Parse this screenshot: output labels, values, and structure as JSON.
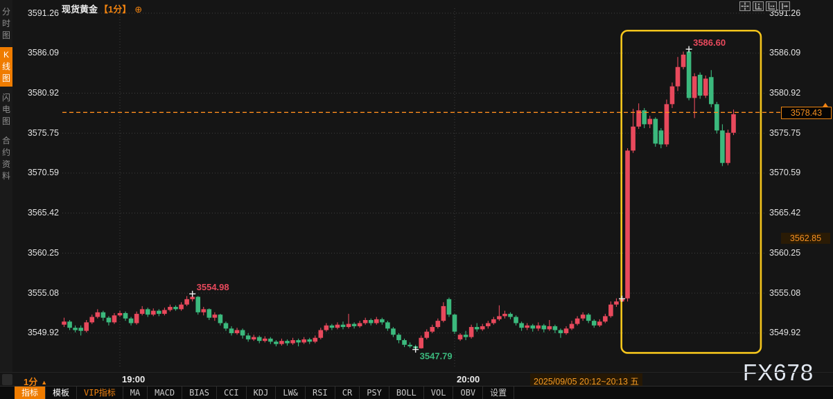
{
  "app": {
    "watermark": "FX678"
  },
  "sidebar": {
    "items": [
      {
        "label": "分时图",
        "active": false
      },
      {
        "label": "K线图",
        "active": true
      },
      {
        "label": "闪电图",
        "active": false
      },
      {
        "label": "合约资料",
        "active": false
      }
    ]
  },
  "header": {
    "symbol": "现货黄金",
    "interval_tag": "【1分】",
    "link_icon": "⊕"
  },
  "top_toolbar": {
    "icons": [
      "crosshair-tool",
      "y-axis-scale",
      "x-axis-scale",
      "shift-right"
    ]
  },
  "y_axis_labels": [
    "3591.26",
    "3586.09",
    "3580.92",
    "3575.75",
    "3570.59",
    "3565.42",
    "3560.25",
    "3555.08",
    "3549.92"
  ],
  "price_labels": {
    "current": "3578.43",
    "reference": "3562.85"
  },
  "footer": {
    "interval": "1分",
    "interval_arrow": "▲",
    "date_range": "2025/09/05 20:12~20:13 五",
    "tabs": [
      {
        "label": "指标",
        "style": "active"
      },
      {
        "label": "模板",
        "style": "bright"
      },
      {
        "label": "VIP指标",
        "style": "vip"
      },
      {
        "label": "MA",
        "style": "normal"
      },
      {
        "label": "MACD",
        "style": "normal"
      },
      {
        "label": "BIAS",
        "style": "normal"
      },
      {
        "label": "CCI",
        "style": "normal"
      },
      {
        "label": "KDJ",
        "style": "normal"
      },
      {
        "label": "LW&",
        "style": "normal"
      },
      {
        "label": "RSI",
        "style": "normal"
      },
      {
        "label": "CR",
        "style": "normal"
      },
      {
        "label": "PSY",
        "style": "normal"
      },
      {
        "label": "BOLL",
        "style": "normal"
      },
      {
        "label": "VOL",
        "style": "normal"
      },
      {
        "label": "OBV",
        "style": "normal"
      },
      {
        "label": "设置",
        "style": "normal"
      }
    ]
  },
  "colors": {
    "up": "#e8495c",
    "down": "#3bb97d",
    "accent_orange": "#ef7c00",
    "highlight_box": "#f5c51c",
    "current_line": "#ff8d1e",
    "grid": "#3f3f3f"
  },
  "chart_data": {
    "type": "candlestick",
    "title": "现货黄金 1分钟K线",
    "minutes_per_candle": 1,
    "up_color": "#e8495c",
    "down_color": "#3bb97d",
    "grid_on": true,
    "y_gridline_prices": [
      3591.26,
      3586.09,
      3580.92,
      3575.75,
      3570.59,
      3565.42,
      3560.25,
      3555.08,
      3549.92
    ],
    "x_gridlines": [
      {
        "label": "19:00",
        "index": 10
      },
      {
        "label": "20:00",
        "index": 70
      }
    ],
    "ylim": [
      3545.3,
      3592.2
    ],
    "current_price": 3578.43,
    "reference_price": 3562.85,
    "highlight_box": {
      "start_index": 99.9,
      "end_index": 124.9,
      "top_price": 3589.0,
      "bottom_price": 3547.35
    },
    "annotations": [
      {
        "label": "3554.98",
        "index": 23,
        "price": 3554.98,
        "kind": "high"
      },
      {
        "label": "3547.79",
        "index": 63,
        "price": 3547.79,
        "kind": "low"
      },
      {
        "label": "3586.60",
        "index": 112,
        "price": 3586.6,
        "kind": "high"
      },
      {
        "label": "",
        "index": 100,
        "price": 3554.35,
        "kind": "cross"
      }
    ],
    "candles": [
      [
        3551.0,
        3551.9,
        3550.7,
        3551.4
      ],
      [
        3551.4,
        3551.6,
        3550.3,
        3550.6
      ],
      [
        3550.6,
        3550.9,
        3550.0,
        3550.3
      ],
      [
        3550.6,
        3550.9,
        3549.6,
        3550.2
      ],
      [
        3550.2,
        3551.6,
        3550.0,
        3551.3
      ],
      [
        3551.3,
        3552.3,
        3551.1,
        3552.0
      ],
      [
        3552.0,
        3553.0,
        3551.8,
        3552.6
      ],
      [
        3552.6,
        3552.8,
        3551.5,
        3551.9
      ],
      [
        3551.9,
        3552.1,
        3550.9,
        3551.3
      ],
      [
        3551.3,
        3552.5,
        3551.1,
        3552.2
      ],
      [
        3552.2,
        3552.8,
        3552.0,
        3552.5
      ],
      [
        3552.5,
        3552.7,
        3551.5,
        3551.8
      ],
      [
        3551.8,
        3552.0,
        3550.9,
        3551.2
      ],
      [
        3551.2,
        3552.7,
        3551.0,
        3552.4
      ],
      [
        3552.4,
        3553.4,
        3552.2,
        3553.0
      ],
      [
        3553.0,
        3553.2,
        3552.0,
        3552.3
      ],
      [
        3552.3,
        3553.1,
        3552.1,
        3552.8
      ],
      [
        3552.8,
        3553.0,
        3552.1,
        3552.4
      ],
      [
        3552.4,
        3553.2,
        3552.2,
        3552.9
      ],
      [
        3552.9,
        3553.6,
        3552.7,
        3553.3
      ],
      [
        3553.3,
        3553.5,
        3552.8,
        3553.0
      ],
      [
        3553.0,
        3553.9,
        3552.8,
        3553.6
      ],
      [
        3553.6,
        3554.7,
        3553.4,
        3554.3
      ],
      [
        3554.3,
        3554.98,
        3554.0,
        3554.6
      ],
      [
        3554.6,
        3554.7,
        3552.3,
        3552.6
      ],
      [
        3552.6,
        3553.3,
        3552.2,
        3553.0
      ],
      [
        3553.0,
        3553.1,
        3551.6,
        3551.9
      ],
      [
        3551.9,
        3552.6,
        3551.5,
        3552.3
      ],
      [
        3552.3,
        3552.4,
        3550.9,
        3551.2
      ],
      [
        3551.2,
        3551.4,
        3550.2,
        3550.5
      ],
      [
        3550.5,
        3550.8,
        3549.6,
        3549.9
      ],
      [
        3549.9,
        3550.6,
        3549.7,
        3550.3
      ],
      [
        3550.3,
        3550.5,
        3549.2,
        3549.6
      ],
      [
        3549.6,
        3549.9,
        3548.8,
        3549.1
      ],
      [
        3549.1,
        3549.7,
        3548.9,
        3549.4
      ],
      [
        3549.4,
        3549.6,
        3548.6,
        3548.9
      ],
      [
        3548.9,
        3549.5,
        3548.7,
        3549.2
      ],
      [
        3549.2,
        3549.4,
        3548.5,
        3548.8
      ],
      [
        3548.8,
        3549.0,
        3548.2,
        3548.5
      ],
      [
        3548.5,
        3549.2,
        3548.3,
        3548.9
      ],
      [
        3548.9,
        3549.1,
        3548.3,
        3548.6
      ],
      [
        3548.6,
        3549.3,
        3548.4,
        3549.0
      ],
      [
        3549.0,
        3549.2,
        3548.2,
        3548.7
      ],
      [
        3548.7,
        3549.4,
        3548.5,
        3549.1
      ],
      [
        3549.1,
        3549.3,
        3548.5,
        3548.8
      ],
      [
        3548.8,
        3549.6,
        3548.6,
        3549.3
      ],
      [
        3549.3,
        3550.6,
        3549.1,
        3550.3
      ],
      [
        3550.3,
        3551.2,
        3550.1,
        3550.9
      ],
      [
        3550.9,
        3551.1,
        3550.3,
        3550.6
      ],
      [
        3550.6,
        3551.3,
        3550.4,
        3551.0
      ],
      [
        3551.0,
        3551.4,
        3550.4,
        3550.7
      ],
      [
        3550.7,
        3552.4,
        3550.5,
        3551.1
      ],
      [
        3551.1,
        3551.3,
        3550.5,
        3550.8
      ],
      [
        3550.8,
        3551.5,
        3550.6,
        3551.2
      ],
      [
        3551.2,
        3551.9,
        3551.0,
        3551.6
      ],
      [
        3551.6,
        3551.8,
        3550.9,
        3551.2
      ],
      [
        3551.2,
        3552.0,
        3551.0,
        3551.7
      ],
      [
        3551.7,
        3551.9,
        3551.0,
        3551.3
      ],
      [
        3551.3,
        3551.5,
        3550.2,
        3550.5
      ],
      [
        3550.5,
        3550.7,
        3549.4,
        3549.7
      ],
      [
        3549.7,
        3549.9,
        3548.6,
        3549.0
      ],
      [
        3549.0,
        3549.2,
        3548.1,
        3548.4
      ],
      [
        3548.4,
        3548.7,
        3548.0,
        3548.2
      ],
      [
        3548.2,
        3548.4,
        3547.79,
        3547.95
      ],
      [
        3547.95,
        3549.6,
        3547.9,
        3549.3
      ],
      [
        3549.3,
        3550.4,
        3549.1,
        3550.1
      ],
      [
        3550.1,
        3551.0,
        3549.9,
        3550.7
      ],
      [
        3550.7,
        3551.8,
        3550.5,
        3551.5
      ],
      [
        3551.5,
        3553.9,
        3551.3,
        3553.4
      ],
      [
        3554.3,
        3554.5,
        3552.0,
        3552.3
      ],
      [
        3552.3,
        3552.4,
        3549.8,
        3550.1
      ],
      [
        3549.1,
        3549.9,
        3548.9,
        3549.7
      ],
      [
        3549.7,
        3550.2,
        3549.0,
        3549.4
      ],
      [
        3549.4,
        3551.0,
        3549.2,
        3550.7
      ],
      [
        3550.7,
        3551.2,
        3550.1,
        3550.4
      ],
      [
        3550.4,
        3551.1,
        3550.2,
        3550.8
      ],
      [
        3550.8,
        3551.5,
        3550.5,
        3551.2
      ],
      [
        3551.2,
        3552.0,
        3551.0,
        3551.7
      ],
      [
        3551.7,
        3553.5,
        3551.5,
        3552.1
      ],
      [
        3552.1,
        3552.8,
        3551.8,
        3552.4
      ],
      [
        3552.4,
        3552.6,
        3551.7,
        3552.0
      ],
      [
        3552.0,
        3552.2,
        3550.9,
        3551.2
      ],
      [
        3551.2,
        3551.4,
        3550.2,
        3550.6
      ],
      [
        3550.6,
        3551.2,
        3550.3,
        3550.9
      ],
      [
        3550.9,
        3551.1,
        3550.1,
        3550.5
      ],
      [
        3550.5,
        3551.3,
        3550.2,
        3550.9
      ],
      [
        3550.9,
        3551.1,
        3550.0,
        3550.4
      ],
      [
        3550.4,
        3551.6,
        3550.2,
        3550.8
      ],
      [
        3550.8,
        3551.0,
        3549.9,
        3550.3
      ],
      [
        3550.3,
        3550.5,
        3549.3,
        3549.9
      ],
      [
        3549.9,
        3550.8,
        3549.7,
        3550.5
      ],
      [
        3550.5,
        3551.5,
        3550.3,
        3551.1
      ],
      [
        3551.1,
        3552.1,
        3550.9,
        3551.8
      ],
      [
        3551.8,
        3552.6,
        3551.5,
        3552.3
      ],
      [
        3552.3,
        3552.5,
        3551.2,
        3551.5
      ],
      [
        3551.5,
        3551.7,
        3550.6,
        3550.9
      ],
      [
        3550.9,
        3551.7,
        3550.7,
        3551.4
      ],
      [
        3551.4,
        3552.4,
        3551.2,
        3552.1
      ],
      [
        3552.1,
        3554.0,
        3551.9,
        3553.6
      ],
      [
        3553.6,
        3554.4,
        3553.3,
        3554.0
      ],
      [
        3554.0,
        3554.7,
        3553.7,
        3554.4
      ],
      [
        3554.4,
        3573.8,
        3554.0,
        3573.5
      ],
      [
        3573.5,
        3578.9,
        3573.2,
        3576.6
      ],
      [
        3576.6,
        3579.6,
        3576.3,
        3578.7
      ],
      [
        3578.7,
        3579.0,
        3576.4,
        3576.9
      ],
      [
        3576.9,
        3578.0,
        3576.4,
        3577.6
      ],
      [
        3577.6,
        3577.8,
        3574.0,
        3574.4
      ],
      [
        3576.1,
        3576.4,
        3573.8,
        3574.3
      ],
      [
        3574.3,
        3580.1,
        3574.0,
        3579.5
      ],
      [
        3579.5,
        3582.3,
        3579.0,
        3581.8
      ],
      [
        3581.8,
        3585.6,
        3581.2,
        3584.3
      ],
      [
        3584.3,
        3586.3,
        3584.0,
        3585.9
      ],
      [
        3586.3,
        3586.6,
        3580.0,
        3580.3
      ],
      [
        3580.3,
        3583.5,
        3577.7,
        3583.1
      ],
      [
        3583.3,
        3583.6,
        3580.2,
        3580.6
      ],
      [
        3580.6,
        3583.2,
        3580.3,
        3582.8
      ],
      [
        3583.0,
        3583.9,
        3579.1,
        3579.5
      ],
      [
        3579.5,
        3579.8,
        3575.7,
        3576.1
      ],
      [
        3576.1,
        3576.9,
        3571.5,
        3571.9
      ],
      [
        3571.9,
        3576.2,
        3571.6,
        3575.8
      ],
      [
        3575.8,
        3578.8,
        3575.5,
        3578.2
      ]
    ]
  }
}
